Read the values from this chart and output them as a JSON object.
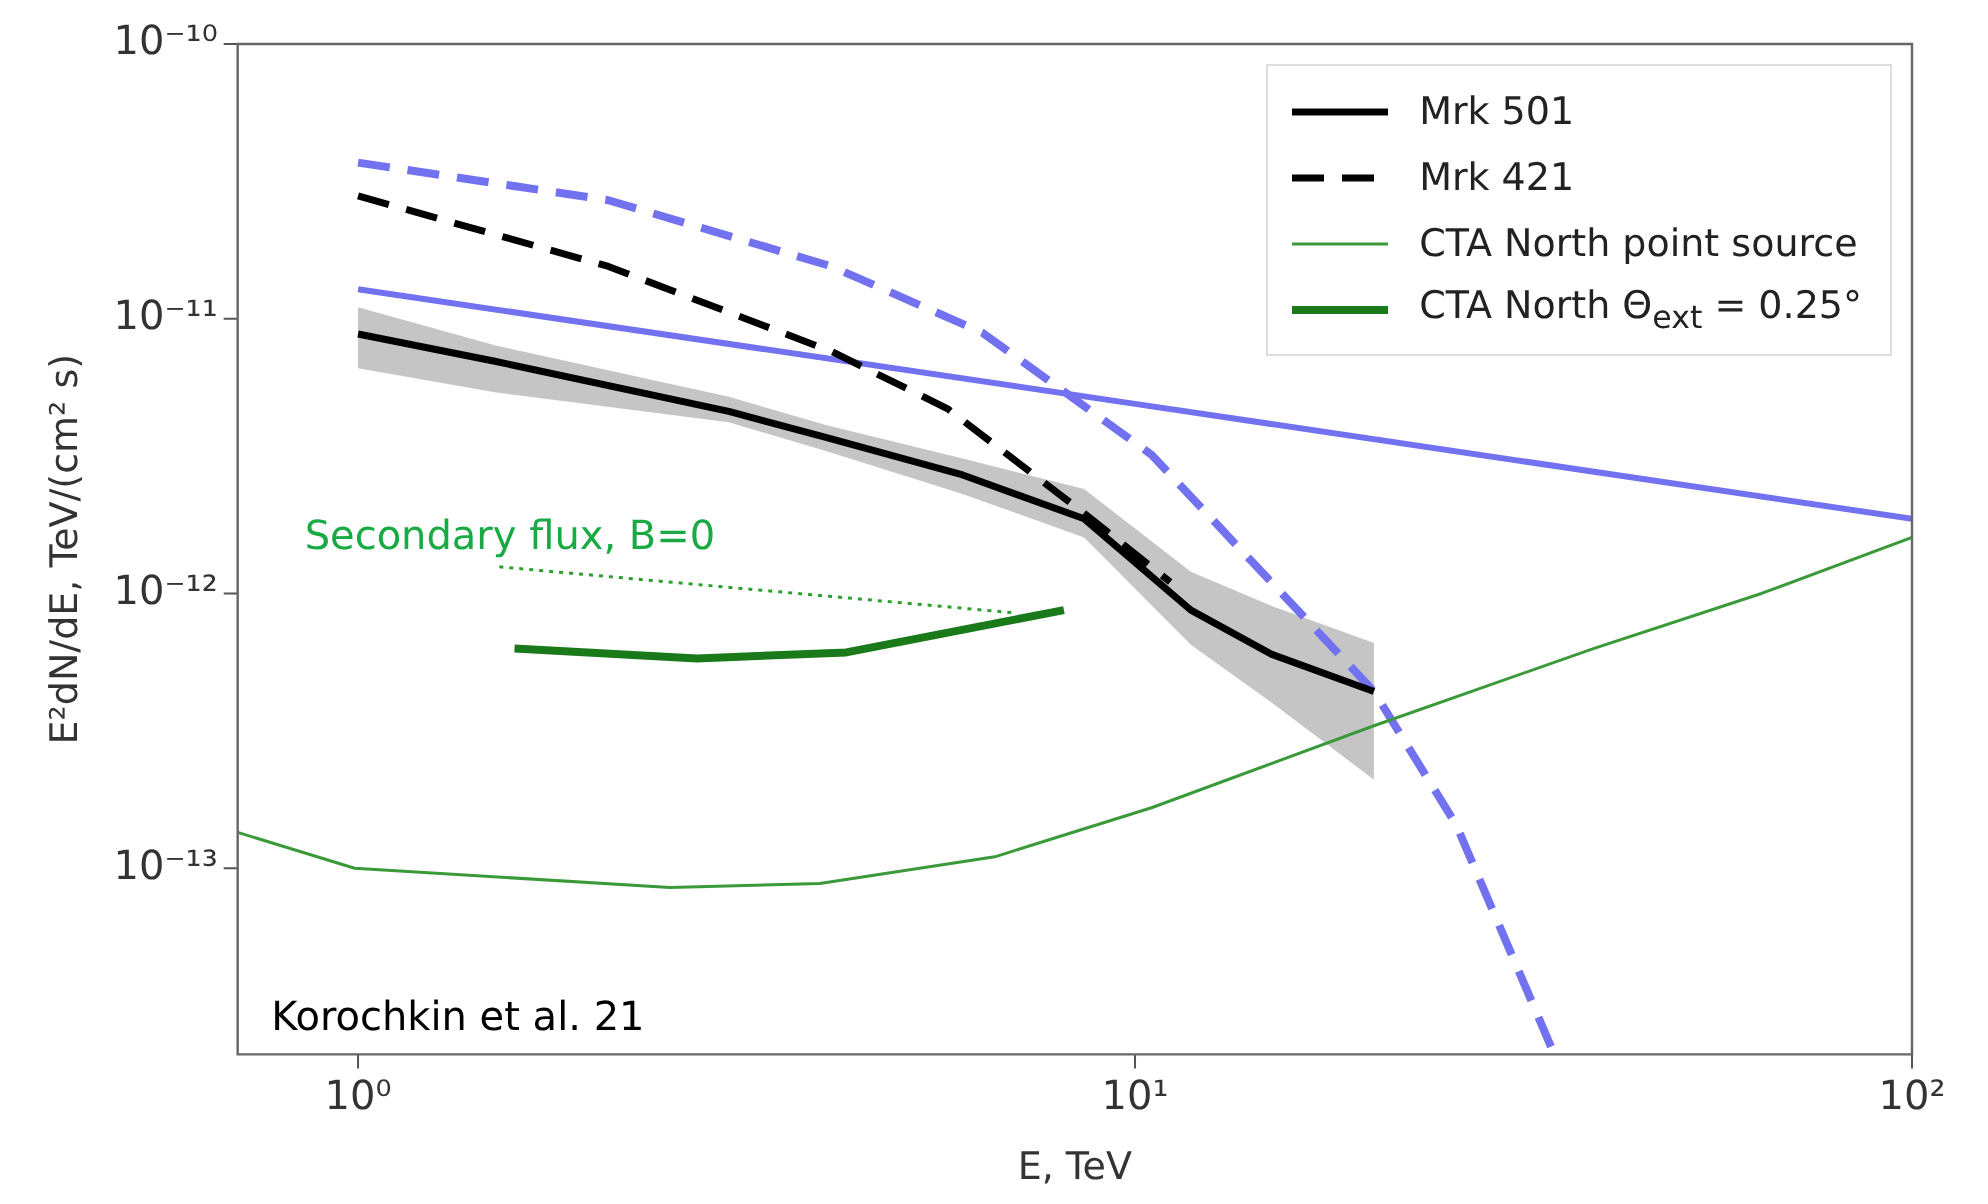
{
  "chart_data": {
    "type": "line",
    "xlabel": "E, TeV",
    "ylabel": "E²dN/dE, TeV/(cm² s)",
    "log": "xy",
    "grid": false,
    "legend": "top right",
    "marker": "none",
    "xlim": [
      0.7,
      100
    ],
    "ylim": [
      2.1e-14,
      1e-10
    ],
    "xticks": [
      {
        "value": 1,
        "label": "10⁰"
      },
      {
        "value": 10,
        "label": "10¹"
      },
      {
        "value": 100,
        "label": "10²"
      }
    ],
    "yticks": [
      {
        "value": 1e-13,
        "label": "10⁻¹³"
      },
      {
        "value": 1e-12,
        "label": "10⁻¹²"
      },
      {
        "value": 1e-11,
        "label": "10⁻¹¹"
      },
      {
        "value": 1e-10,
        "label": "10⁻¹⁰"
      }
    ],
    "series": [
      {
        "name": "Mrk 501",
        "color": "#000000",
        "line_style": "solid",
        "x": [
          1,
          1.5,
          3,
          4,
          6,
          8.6,
          11.8,
          15,
          20.3
        ],
        "values": [
          8.8e-12,
          7e-12,
          4.6e-12,
          3.7e-12,
          2.7e-12,
          1.87e-12,
          8.7e-13,
          6e-13,
          4.4e-13
        ],
        "lower": [
          6.6e-12,
          5.4e-12,
          4.2e-12,
          3.3e-12,
          2.3e-12,
          1.6e-12,
          6.5e-13,
          4e-13,
          2.1e-13
        ],
        "upper": [
          1.1e-11,
          8e-12,
          5.2e-12,
          4.1e-12,
          3.1e-12,
          2.4e-12,
          1.2e-12,
          9e-13,
          6.6e-13
        ]
      },
      {
        "name": "Mrk 421",
        "color": "#000000",
        "line_style": "dashed",
        "x": [
          1,
          2.1,
          4.07,
          5.74,
          8.6,
          11.1
        ],
        "values": [
          2.8e-11,
          1.55e-11,
          7.6e-12,
          4.7e-12,
          1.96e-12,
          1.1e-12
        ]
      },
      {
        "name": "CTA North point source",
        "color": "#3a9a3a",
        "line_style": "solid",
        "x": [
          0.7,
          0.99,
          2.52,
          3.93,
          6.6,
          10.5,
          20.3,
          38.9,
          64,
          100
        ],
        "values": [
          1.35e-13,
          1e-13,
          8.5e-14,
          8.8e-14,
          1.1e-13,
          1.66e-13,
          3.3e-13,
          6.3e-13,
          1e-12,
          1.6e-12
        ]
      },
      {
        "name": "CTA North Θ$_{ext}$ = 0.25°",
        "color": "#1a7a1a",
        "line_style": "solid",
        "x": [
          1.59,
          2.73,
          4.25,
          8.1
        ],
        "values": [
          6.3e-13,
          5.8e-13,
          6.1e-13,
          8.7e-13
        ]
      },
      {
        "color": "#7272f0",
        "line_style": "solid",
        "x": [
          1,
          10,
          100
        ],
        "values": [
          1.28e-11,
          4.9e-12,
          1.87e-12
        ]
      },
      {
        "color": "#7272f0",
        "line_style": "dashed",
        "x": [
          1,
          2.1,
          4.07,
          6.36,
          10.5,
          20.3,
          25.9,
          34.4
        ],
        "values": [
          3.7e-11,
          2.7e-11,
          1.55e-11,
          8.9e-12,
          3.2e-12,
          4.4e-13,
          1.44e-13,
          2.2e-14
        ]
      },
      {
        "color": "#2ca02c",
        "line_style": "dotted",
        "x": [
          1.52,
          7.0
        ],
        "values": [
          1.25e-12,
          8.5e-13
        ]
      }
    ],
    "annotations": [
      "Secondary flux, B=0",
      "Korochkin et al. 21"
    ]
  }
}
